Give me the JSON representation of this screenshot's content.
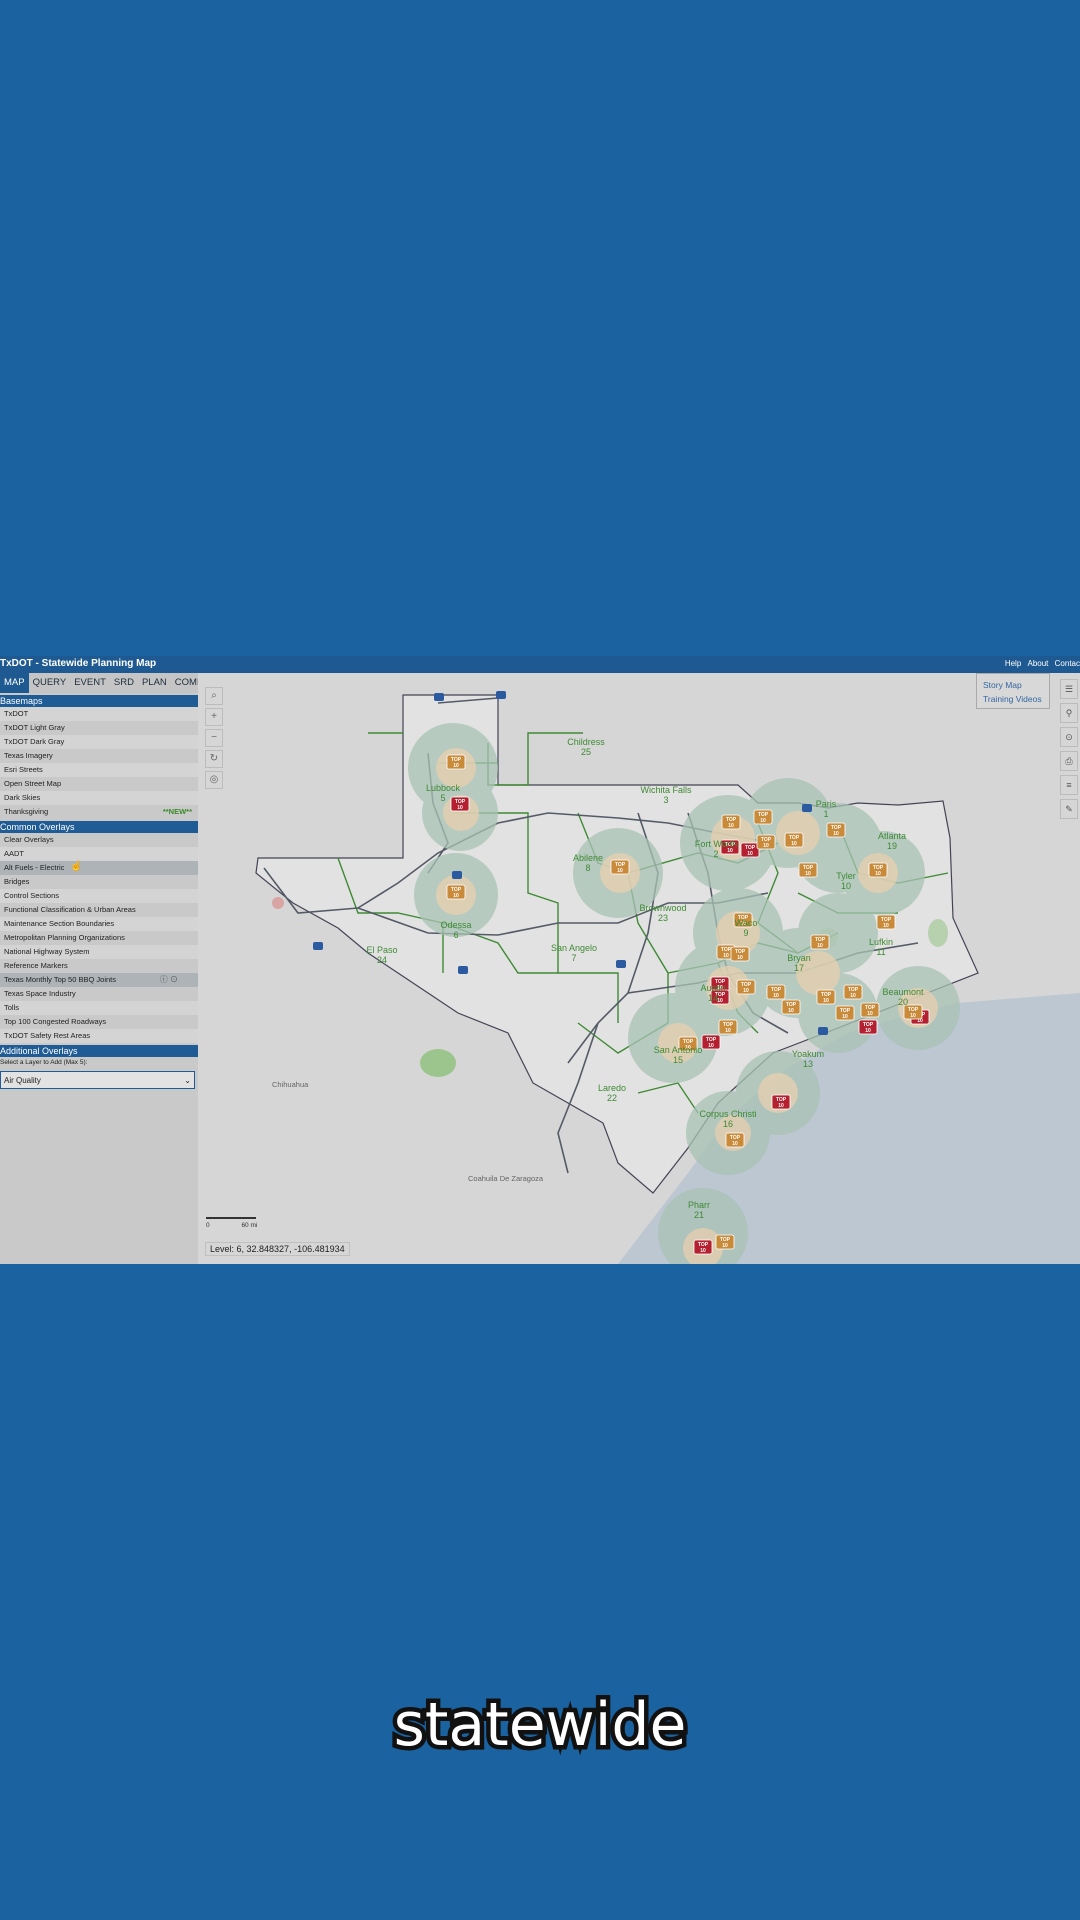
{
  "app": {
    "title": "TxDOT - Statewide Planning Map",
    "header_links": [
      "Help",
      "About",
      "Contac"
    ]
  },
  "tabs": [
    "MAP",
    "QUERY",
    "EVENT",
    "SRD",
    "PLAN",
    "COMPARE"
  ],
  "basemaps": {
    "heading": "Basemaps",
    "items": [
      "TxDOT",
      "TxDOT Light Gray",
      "TxDOT Dark Gray",
      "Texas Imagery",
      "Esri Streets",
      "Open Street Map",
      "Dark Skies",
      "Thanksgiving"
    ],
    "new_badge": "**NEW**"
  },
  "common_overlays": {
    "heading": "Common Overlays",
    "items": [
      "Clear Overlays",
      "AADT",
      "Alt Fuels - Electric",
      "Bridges",
      "Control Sections",
      "Functional Classification & Urban Areas",
      "Maintenance Section Boundaries",
      "Metropolitan Planning Organizations",
      "National Highway System",
      "Reference Markers",
      "Texas Monthly Top 50 BBQ Joints",
      "Texas Space Industry",
      "Tolls",
      "Top 100 Congested Roadways",
      "TxDOT Safety Rest Areas"
    ]
  },
  "additional_overlays": {
    "heading": "Additional Overlays",
    "hint": "Select a Layer to Add (Max 5):",
    "selected": "Air Quality"
  },
  "map": {
    "story_links": [
      "Story Map",
      "Training Videos"
    ],
    "status": "Level: 6, 32.848327, -106.481934",
    "scale_labels": [
      "0",
      "60 mi"
    ],
    "place_labels": [
      "Chihuahua",
      "Coahuila De Zaragoza"
    ],
    "districts": [
      {
        "name": "Childress",
        "num": "25"
      },
      {
        "name": "Wichita Falls",
        "num": "3"
      },
      {
        "name": "Paris",
        "num": "1"
      },
      {
        "name": "Atlanta",
        "num": "19"
      },
      {
        "name": "Lubbock",
        "num": "5"
      },
      {
        "name": "Abilene",
        "num": "8"
      },
      {
        "name": "Fort Worth",
        "num": "2"
      },
      {
        "name": "Tyler",
        "num": "10"
      },
      {
        "name": "Brownwood",
        "num": "23"
      },
      {
        "name": "Odessa",
        "num": "6"
      },
      {
        "name": "El Paso",
        "num": "24"
      },
      {
        "name": "San Angelo",
        "num": "7"
      },
      {
        "name": "Waco",
        "num": "9"
      },
      {
        "name": "Lufkin",
        "num": "11"
      },
      {
        "name": "Bryan",
        "num": "17"
      },
      {
        "name": "Austin",
        "num": "14"
      },
      {
        "name": "Beaumont",
        "num": "20"
      },
      {
        "name": "San Antonio",
        "num": "15"
      },
      {
        "name": "Yoakum",
        "num": "13"
      },
      {
        "name": "Laredo",
        "num": "22"
      },
      {
        "name": "Corpus Christi",
        "num": "16"
      },
      {
        "name": "Pharr",
        "num": "21"
      }
    ],
    "marker_label": "TOP 10"
  },
  "caption": "statewide"
}
